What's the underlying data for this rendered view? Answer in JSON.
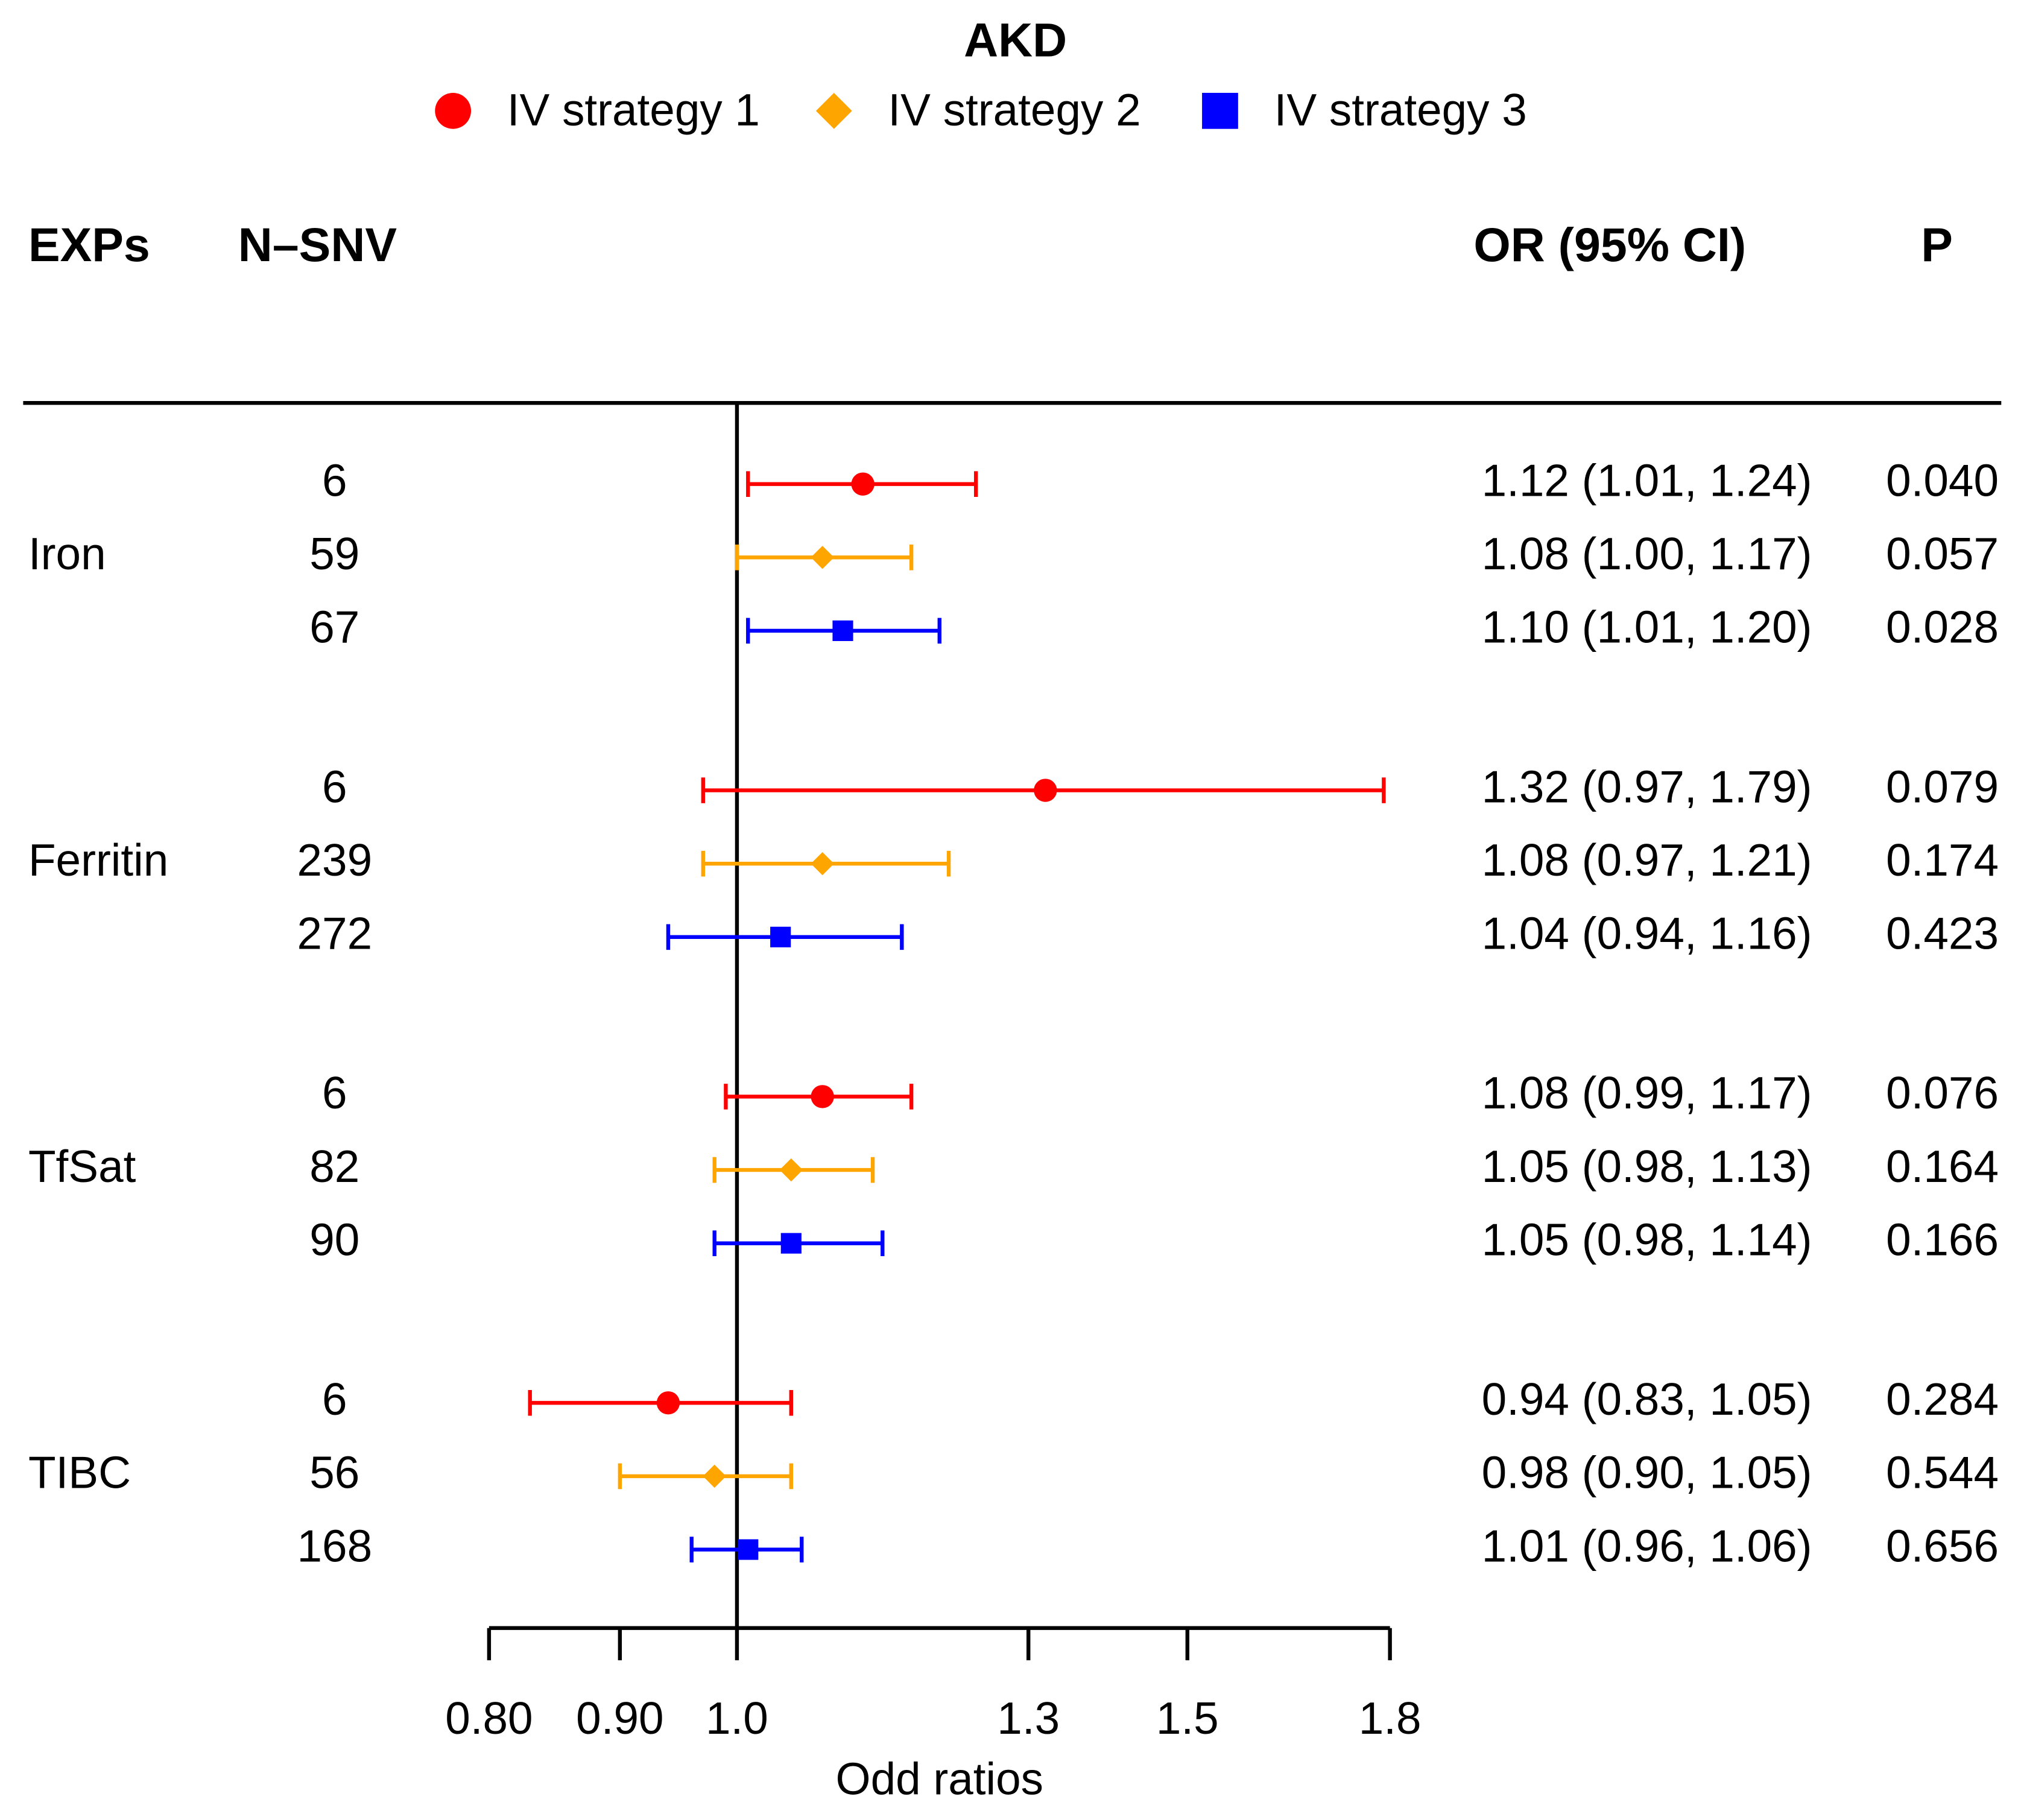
{
  "chart_data": {
    "type": "forest",
    "title": "AKD",
    "x_label": "Odd ratios",
    "column_headers": [
      "EXPs",
      "N–SNV",
      "OR (95% CI)",
      "P"
    ],
    "categories": [
      "Iron",
      "Ferritin",
      "TfSat",
      "TIBC"
    ],
    "log_x": true,
    "xlim": [
      0.8,
      1.8
    ],
    "xticks": [
      {
        "value": 0.8,
        "label": "0.80"
      },
      {
        "value": 0.9,
        "label": "0.90"
      },
      {
        "value": 1,
        "label": "1.0"
      },
      1.3,
      1.5,
      1.8
    ],
    "reference_line": 1,
    "series": [
      {
        "name": "IV strategy 1",
        "color": "#ff0000",
        "marker": "circle",
        "n_snv": [
          6,
          6,
          6,
          6
        ],
        "values": [
          1.12,
          1.32,
          1.08,
          0.94
        ],
        "lower": [
          1.01,
          0.97,
          0.99,
          0.83
        ],
        "upper": [
          1.24,
          1.79,
          1.17,
          1.05
        ],
        "value_labels": [
          "1.12 (1.01, 1.24)",
          "1.32 (0.97, 1.79)",
          "1.08 (0.99, 1.17)",
          "0.94 (0.83, 1.05)"
        ],
        "p": [
          0.04,
          0.079,
          0.076,
          0.284
        ],
        "p_labels": [
          "0.040",
          "0.079",
          "0.076",
          "0.284"
        ]
      },
      {
        "name": "IV strategy 2",
        "color": "#ffa500",
        "marker": "diamond",
        "n_snv": [
          59,
          239,
          82,
          56
        ],
        "values": [
          1.08,
          1.08,
          1.05,
          0.98
        ],
        "lower": [
          1.0,
          0.97,
          0.98,
          0.9
        ],
        "upper": [
          1.17,
          1.21,
          1.13,
          1.05
        ],
        "value_labels": [
          "1.08 (1.00, 1.17)",
          "1.08 (0.97, 1.21)",
          "1.05 (0.98, 1.13)",
          "0.98 (0.90, 1.05)"
        ],
        "p": [
          0.057,
          0.174,
          0.164,
          0.544
        ],
        "p_labels": [
          "0.057",
          "0.174",
          "0.164",
          "0.544"
        ]
      },
      {
        "name": "IV strategy 3",
        "color": "#0000ff",
        "marker": "square",
        "n_snv": [
          67,
          272,
          90,
          168
        ],
        "values": [
          1.1,
          1.04,
          1.05,
          1.01
        ],
        "lower": [
          1.01,
          0.94,
          0.98,
          0.96
        ],
        "upper": [
          1.2,
          1.16,
          1.14,
          1.06
        ],
        "value_labels": [
          "1.10 (1.01, 1.20)",
          "1.04 (0.94, 1.16)",
          "1.05 (0.98, 1.14)",
          "1.01 (0.96, 1.06)"
        ],
        "p": [
          0.028,
          0.423,
          0.166,
          0.656
        ],
        "p_labels": [
          "0.028",
          "0.423",
          "0.166",
          "0.656"
        ]
      }
    ]
  }
}
